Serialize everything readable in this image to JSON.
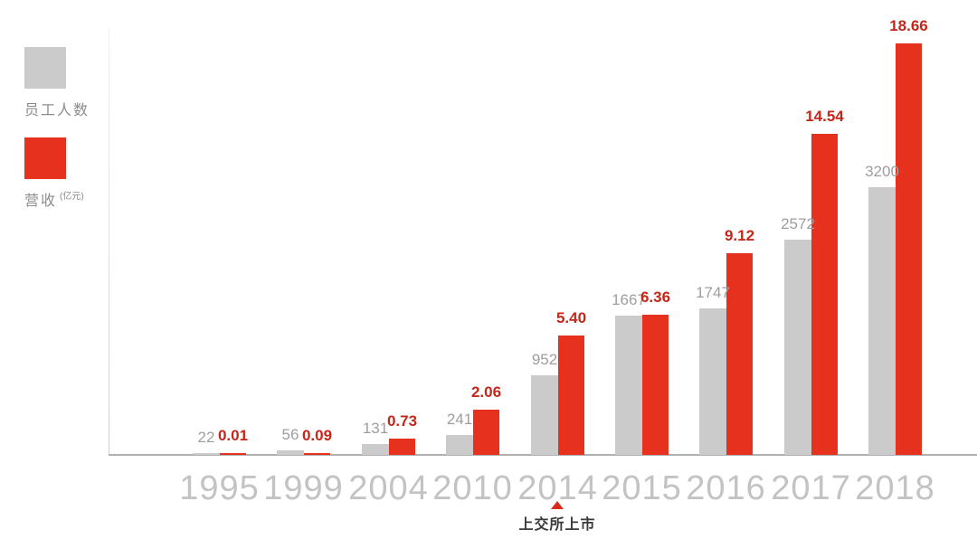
{
  "legend": {
    "employees_label": "员工人数",
    "revenue_label": "营收",
    "revenue_unit": "(亿元)"
  },
  "chart_data": {
    "type": "bar",
    "title": "",
    "xlabel": "",
    "ylabel": "",
    "grid": false,
    "legend_position": "top-left",
    "categories": [
      "1995",
      "1999",
      "2004",
      "2010",
      "2014",
      "2015",
      "2016",
      "2017",
      "2018"
    ],
    "series": [
      {
        "name": "员工人数",
        "values": [
          22,
          56,
          131,
          241,
          952,
          1667,
          1747,
          2572,
          3200
        ],
        "labels": [
          "22",
          "56",
          "131",
          "241",
          "952",
          "1667",
          "1747",
          "2572",
          "3200"
        ],
        "color": "#cbcbcb",
        "label_color": "#9e9e9e"
      },
      {
        "name": "营收",
        "unit": "亿元",
        "values": [
          0.01,
          0.09,
          0.73,
          2.06,
          5.4,
          6.36,
          9.12,
          14.54,
          18.66
        ],
        "labels": [
          "0.01",
          "0.09",
          "0.73",
          "2.06",
          "5.40",
          "6.36",
          "9.12",
          "14.54",
          "18.66"
        ],
        "color": "#e5311d",
        "label_color": "#c4261a"
      }
    ],
    "annotation": {
      "category": "2014",
      "text": "上交所上市"
    }
  }
}
